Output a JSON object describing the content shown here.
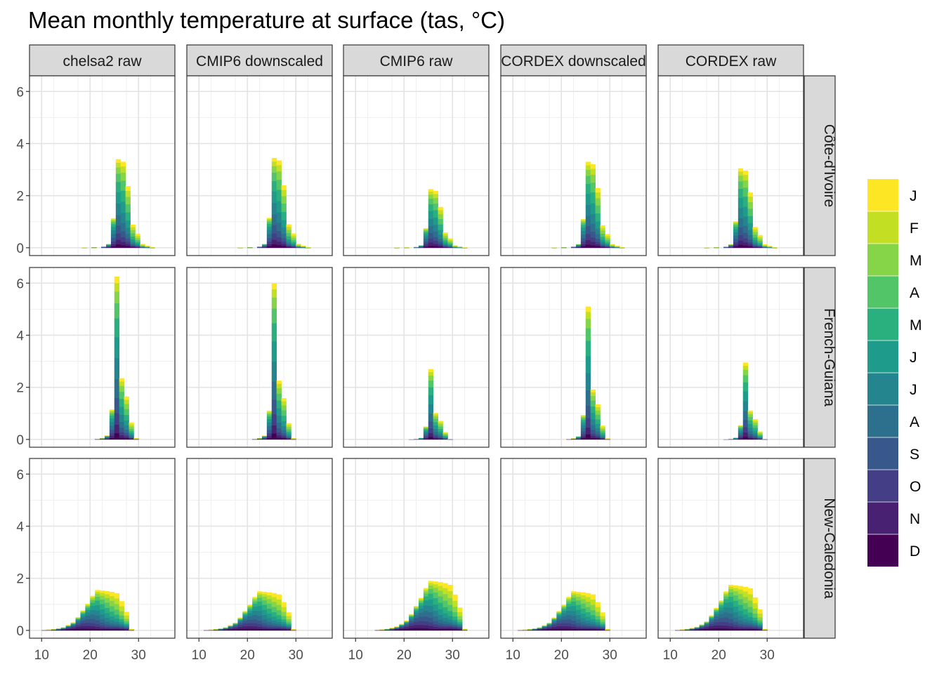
{
  "chart_data": {
    "type": "bar",
    "subtype": "stacked histogram, faceted grid",
    "title": "Mean monthly temperature at surface (tas, °C)",
    "xlabel": "",
    "ylabel": "",
    "xlim": [
      7.5,
      37.5
    ],
    "ylim": [
      -0.3,
      6.6
    ],
    "x_ticks": [
      10,
      20,
      30
    ],
    "y_ticks": [
      0,
      2,
      4,
      6
    ],
    "grid": true,
    "legend_position": "right",
    "legend": {
      "entries": [
        "J",
        "F",
        "M",
        "A",
        "M",
        "J",
        "J",
        "A",
        "S",
        "O",
        "N",
        "D"
      ],
      "colors": [
        "#FDE725",
        "#C2DF23",
        "#86D549",
        "#52C569",
        "#2AB07F",
        "#1E9B8A",
        "#25858E",
        "#2D708E",
        "#38588C",
        "#433E85",
        "#482173",
        "#440154"
      ]
    },
    "column_facets": [
      "chelsa2 raw",
      "CMIP6 downscaled",
      "CMIP6 raw",
      "CORDEX downscaled",
      "CORDEX raw"
    ],
    "row_facets": [
      "Côte-d'Ivoire",
      "French-Guiana",
      "New-Caledonia"
    ],
    "row_profiles": [
      {
        "row": "Côte-d'Ivoire",
        "stack_profile": [
          [
            18,
            0.01
          ],
          [
            20,
            0.02
          ],
          [
            22,
            0.05
          ],
          [
            23,
            0.15
          ],
          [
            24,
            1.15
          ],
          [
            25,
            3.45
          ],
          [
            26,
            3.35
          ],
          [
            27,
            2.4
          ],
          [
            28,
            0.9
          ],
          [
            29,
            0.55
          ],
          [
            30,
            0.15
          ],
          [
            31,
            0.08
          ],
          [
            32,
            0.02
          ]
        ]
      },
      {
        "row": "French-Guiana",
        "stack_profile": [
          [
            21,
            0.02
          ],
          [
            22,
            0.05
          ],
          [
            23,
            0.15
          ],
          [
            24,
            1.15
          ],
          [
            25,
            6.25
          ],
          [
            26,
            2.35
          ],
          [
            27,
            1.65
          ],
          [
            28,
            0.65
          ],
          [
            29,
            0.05
          ]
        ]
      },
      {
        "row": "New-Caledonia",
        "stack_profile": [
          [
            10,
            0.02
          ],
          [
            11,
            0.03
          ],
          [
            12,
            0.05
          ],
          [
            13,
            0.08
          ],
          [
            14,
            0.12
          ],
          [
            15,
            0.2
          ],
          [
            16,
            0.3
          ],
          [
            17,
            0.5
          ],
          [
            18,
            0.75
          ],
          [
            19,
            1.0
          ],
          [
            20,
            1.3
          ],
          [
            21,
            1.52
          ],
          [
            22,
            1.5
          ],
          [
            23,
            1.48
          ],
          [
            24,
            1.45
          ],
          [
            25,
            1.4
          ],
          [
            26,
            1.1
          ],
          [
            27,
            0.7
          ],
          [
            28,
            0.05
          ]
        ]
      }
    ],
    "panels": [
      {
        "column": "chelsa2 raw",
        "row": "Côte-d'Ivoire",
        "peak": 3.4,
        "mode": 25.8
      },
      {
        "column": "CMIP6 downscaled",
        "row": "Côte-d'Ivoire",
        "peak": 3.45,
        "mode": 25.5
      },
      {
        "column": "CMIP6 raw",
        "row": "Côte-d'Ivoire",
        "peak": 2.25,
        "mode": 25.5
      },
      {
        "column": "CORDEX downscaled",
        "row": "Côte-d'Ivoire",
        "peak": 3.3,
        "mode": 25.5
      },
      {
        "column": "CORDEX raw",
        "row": "Côte-d'Ivoire",
        "peak": 3.05,
        "mode": 24.5
      },
      {
        "column": "chelsa2 raw",
        "row": "French-Guiana",
        "peak": 6.25,
        "mode": 25.5
      },
      {
        "column": "CMIP6 downscaled",
        "row": "French-Guiana",
        "peak": 6.0,
        "mode": 25.5
      },
      {
        "column": "CMIP6 raw",
        "row": "French-Guiana",
        "peak": 2.7,
        "mode": 25.5
      },
      {
        "column": "CORDEX downscaled",
        "row": "French-Guiana",
        "peak": 5.1,
        "mode": 25.5
      },
      {
        "column": "CORDEX raw",
        "row": "French-Guiana",
        "peak": 2.95,
        "mode": 25.5
      },
      {
        "column": "chelsa2 raw",
        "row": "New-Caledonia",
        "peak": 1.55,
        "mode": 21.5
      },
      {
        "column": "CMIP6 downscaled",
        "row": "New-Caledonia",
        "peak": 1.5,
        "mode": 22.5
      },
      {
        "column": "CMIP6 raw",
        "row": "New-Caledonia",
        "peak": 1.9,
        "mode": 25.5
      },
      {
        "column": "CORDEX downscaled",
        "row": "New-Caledonia",
        "peak": 1.5,
        "mode": 22.5
      },
      {
        "column": "CORDEX raw",
        "row": "New-Caledonia",
        "peak": 1.75,
        "mode": 22.5
      }
    ]
  }
}
